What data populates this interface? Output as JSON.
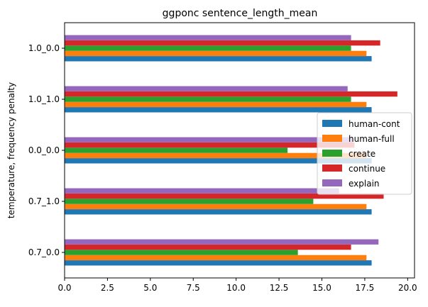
{
  "chart_data": {
    "type": "bar",
    "orientation": "horizontal",
    "title": "ggponc sentence_length_mean",
    "xlabel": "",
    "ylabel": "temperature, frequency penalty",
    "xlim": [
      0,
      20.4
    ],
    "xticks": [
      "0.0",
      "2.5",
      "5.0",
      "7.5",
      "10.0",
      "12.5",
      "15.0",
      "17.5",
      "20.0"
    ],
    "categories": [
      "0.7_0.0",
      "0.7_1.0",
      "0.0_0.0",
      "1.0_1.0",
      "1.0_0.0"
    ],
    "series": [
      {
        "name": "human-cont",
        "color": "#1f77b4",
        "values": [
          17.9,
          17.9,
          17.9,
          17.9,
          17.9
        ]
      },
      {
        "name": "human-full",
        "color": "#ff7f0e",
        "values": [
          17.6,
          17.6,
          17.6,
          17.6,
          17.6
        ]
      },
      {
        "name": "create",
        "color": "#2ca02c",
        "values": [
          13.6,
          14.5,
          13.0,
          16.7,
          16.7
        ]
      },
      {
        "name": "continue",
        "color": "#d62728",
        "values": [
          16.7,
          18.6,
          16.9,
          19.4,
          18.4
        ]
      },
      {
        "name": "explain",
        "color": "#9467bd",
        "values": [
          18.3,
          16.0,
          16.8,
          16.5,
          16.7
        ]
      }
    ],
    "legend_position": "center-right",
    "grid": false
  }
}
